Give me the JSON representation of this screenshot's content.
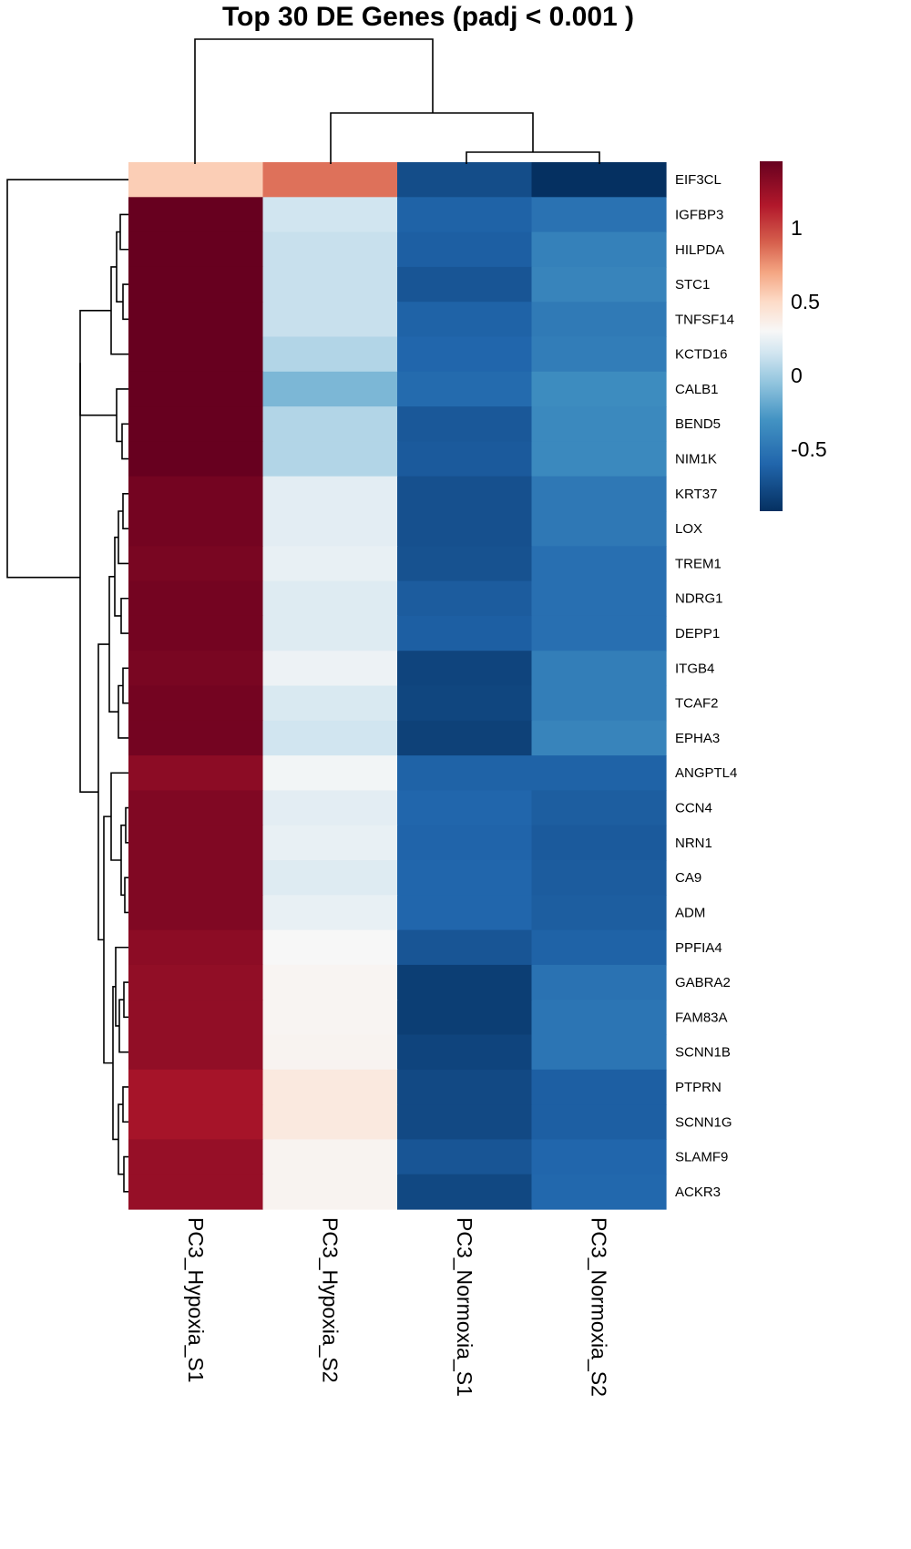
{
  "chart_data": {
    "type": "heatmap",
    "title": "Top 30 DE Genes (padj < 0.001 )",
    "columns": [
      "PC3_Hypoxia_S1",
      "PC3_Hypoxia_S2",
      "PC3_Normoxia_S1",
      "PC3_Normoxia_S2"
    ],
    "rows": [
      "EIF3CL",
      "IGFBP3",
      "HILPDA",
      "STC1",
      "TNFSF14",
      "KCTD16",
      "CALB1",
      "BEND5",
      "NIM1K",
      "KRT37",
      "LOX",
      "TREM1",
      "NDRG1",
      "DEPP1",
      "ITGB4",
      "TCAF2",
      "EPHA3",
      "ANGPTL4",
      "CCN4",
      "NRN1",
      "CA9",
      "ADM",
      "PPFIA4",
      "GABRA2",
      "FAM83A",
      "SCNN1B",
      "PTPRN",
      "SCNN1G",
      "SLAMF9",
      "ACKR3"
    ],
    "values": [
      [
        0.55,
        0.85,
        -0.75,
        -0.92
      ],
      [
        1.45,
        0.15,
        -0.62,
        -0.52
      ],
      [
        1.45,
        0.12,
        -0.64,
        -0.42
      ],
      [
        1.45,
        0.12,
        -0.7,
        -0.4
      ],
      [
        1.45,
        0.12,
        -0.62,
        -0.47
      ],
      [
        1.45,
        0.05,
        -0.6,
        -0.45
      ],
      [
        1.45,
        -0.12,
        -0.57,
        -0.35
      ],
      [
        1.45,
        0.05,
        -0.68,
        -0.37
      ],
      [
        1.45,
        0.05,
        -0.67,
        -0.37
      ],
      [
        1.4,
        0.22,
        -0.73,
        -0.48
      ],
      [
        1.4,
        0.22,
        -0.73,
        -0.48
      ],
      [
        1.38,
        0.24,
        -0.72,
        -0.54
      ],
      [
        1.4,
        0.2,
        -0.66,
        -0.54
      ],
      [
        1.4,
        0.2,
        -0.64,
        -0.54
      ],
      [
        1.38,
        0.26,
        -0.8,
        -0.44
      ],
      [
        1.4,
        0.18,
        -0.79,
        -0.44
      ],
      [
        1.4,
        0.15,
        -0.82,
        -0.4
      ],
      [
        1.3,
        0.28,
        -0.62,
        -0.62
      ],
      [
        1.35,
        0.22,
        -0.6,
        -0.65
      ],
      [
        1.35,
        0.24,
        -0.61,
        -0.67
      ],
      [
        1.35,
        0.2,
        -0.6,
        -0.66
      ],
      [
        1.35,
        0.24,
        -0.6,
        -0.65
      ],
      [
        1.3,
        0.3,
        -0.7,
        -0.62
      ],
      [
        1.28,
        0.32,
        -0.84,
        -0.52
      ],
      [
        1.28,
        0.32,
        -0.84,
        -0.5
      ],
      [
        1.28,
        0.33,
        -0.8,
        -0.5
      ],
      [
        1.2,
        0.4,
        -0.77,
        -0.64
      ],
      [
        1.2,
        0.4,
        -0.77,
        -0.64
      ],
      [
        1.26,
        0.33,
        -0.7,
        -0.6
      ],
      [
        1.26,
        0.33,
        -0.78,
        -0.59
      ]
    ],
    "color_scale": {
      "min": -0.92,
      "max": 1.45,
      "stops": [
        {
          "value": -0.92,
          "color": "#053061"
        },
        {
          "value": -0.6,
          "color": "#2166ac"
        },
        {
          "value": -0.3,
          "color": "#4393c3"
        },
        {
          "value": -0.05,
          "color": "#92c5de"
        },
        {
          "value": 0.15,
          "color": "#d1e5f0"
        },
        {
          "value": 0.3,
          "color": "#f7f7f7"
        },
        {
          "value": 0.5,
          "color": "#fddbc7"
        },
        {
          "value": 0.7,
          "color": "#f4a582"
        },
        {
          "value": 0.9,
          "color": "#d6604d"
        },
        {
          "value": 1.15,
          "color": "#b2182b"
        },
        {
          "value": 1.45,
          "color": "#67001f"
        }
      ]
    },
    "legend_ticks": [
      1,
      0.5,
      0,
      -0.5
    ],
    "legend_tick_labels": [
      "1",
      "0.5",
      "0",
      "-0.5"
    ],
    "legend_position": "right",
    "column_dendrogram": "top",
    "row_dendrogram": "left"
  }
}
